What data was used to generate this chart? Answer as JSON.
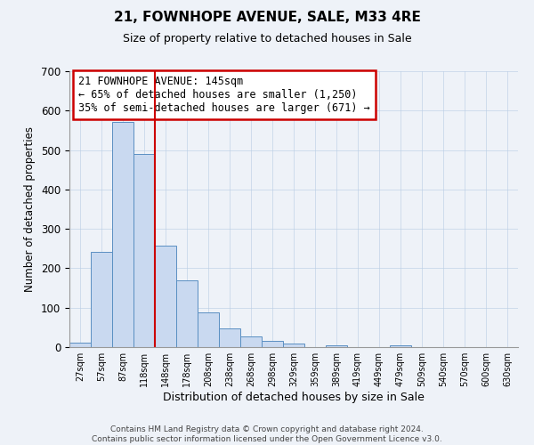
{
  "title": "21, FOWNHOPE AVENUE, SALE, M33 4RE",
  "subtitle": "Size of property relative to detached houses in Sale",
  "xlabel": "Distribution of detached houses by size in Sale",
  "ylabel": "Number of detached properties",
  "bin_labels": [
    "27sqm",
    "57sqm",
    "87sqm",
    "118sqm",
    "148sqm",
    "178sqm",
    "208sqm",
    "238sqm",
    "268sqm",
    "298sqm",
    "329sqm",
    "359sqm",
    "389sqm",
    "419sqm",
    "449sqm",
    "479sqm",
    "509sqm",
    "540sqm",
    "570sqm",
    "600sqm",
    "630sqm"
  ],
  "bar_heights": [
    12,
    242,
    571,
    491,
    258,
    170,
    88,
    47,
    27,
    15,
    9,
    0,
    4,
    0,
    0,
    5,
    0,
    0,
    0,
    0,
    0
  ],
  "bar_color": "#c9d9f0",
  "bar_edge_color": "#5a8fc2",
  "vline_x": 4,
  "vline_color": "#cc0000",
  "ylim": [
    0,
    700
  ],
  "yticks": [
    0,
    100,
    200,
    300,
    400,
    500,
    600,
    700
  ],
  "annotation_text": "21 FOWNHOPE AVENUE: 145sqm\n← 65% of detached houses are smaller (1,250)\n35% of semi-detached houses are larger (671) →",
  "annotation_box_color": "#ffffff",
  "annotation_box_edge_color": "#cc0000",
  "footer_text": "Contains HM Land Registry data © Crown copyright and database right 2024.\nContains public sector information licensed under the Open Government Licence v3.0.",
  "background_color": "#eef2f8",
  "title_fontsize": 11,
  "subtitle_fontsize": 9
}
